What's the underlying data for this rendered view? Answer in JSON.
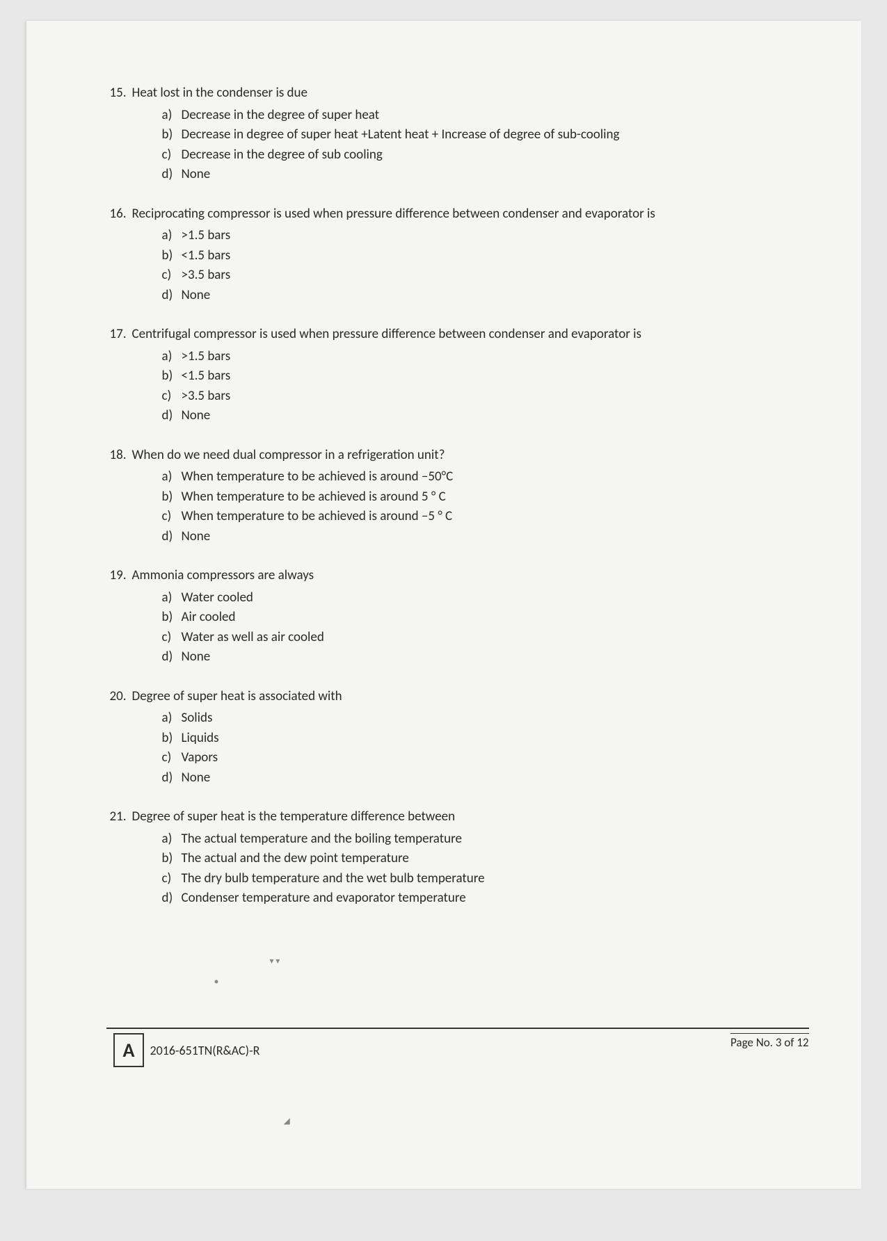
{
  "questions": [
    {
      "num": "15.",
      "text": "Heat lost in the condenser is due",
      "options": [
        {
          "letter": "a)",
          "text": "Decrease in the degree of super heat"
        },
        {
          "letter": "b)",
          "text": "Decrease in degree of super heat +Latent heat + Increase of degree of sub-cooling"
        },
        {
          "letter": "c)",
          "text": "Decrease in the degree of sub cooling"
        },
        {
          "letter": "d)",
          "text": "None"
        }
      ]
    },
    {
      "num": "16.",
      "text": "Reciprocating compressor is used when pressure difference between condenser and evaporator is",
      "options": [
        {
          "letter": "a)",
          "text": ">1.5 bars"
        },
        {
          "letter": "b)",
          "text": "<1.5 bars"
        },
        {
          "letter": "c)",
          "text": ">3.5 bars"
        },
        {
          "letter": "d)",
          "text": "None"
        }
      ]
    },
    {
      "num": "17.",
      "text": "Centrifugal compressor is used when pressure difference between condenser and evaporator is",
      "options": [
        {
          "letter": "a)",
          "text": ">1.5 bars"
        },
        {
          "letter": "b)",
          "text": "<1.5 bars"
        },
        {
          "letter": "c)",
          "text": ">3.5 bars"
        },
        {
          "letter": "d)",
          "text": "None"
        }
      ]
    },
    {
      "num": "18.",
      "text": "When do we need dual compressor in a refrigeration unit?",
      "options": [
        {
          "letter": "a)",
          "text": "When temperature to be achieved is around –50°C"
        },
        {
          "letter": "b)",
          "text": "When temperature to be achieved is around  5 ° C"
        },
        {
          "letter": "c)",
          "text": "When temperature to be achieved is  around –5 ° C"
        },
        {
          "letter": "d)",
          "text": "None"
        }
      ]
    },
    {
      "num": "19.",
      "text": "Ammonia compressors are always",
      "options": [
        {
          "letter": "a)",
          "text": "Water cooled"
        },
        {
          "letter": "b)",
          "text": "Air cooled"
        },
        {
          "letter": "c)",
          "text": "Water as well as air cooled"
        },
        {
          "letter": "d)",
          "text": "None"
        }
      ]
    },
    {
      "num": "20.",
      "text": "Degree of super heat is associated with",
      "options": [
        {
          "letter": "a)",
          "text": "Solids"
        },
        {
          "letter": "b)",
          "text": "Liquids"
        },
        {
          "letter": "c)",
          "text": "Vapors"
        },
        {
          "letter": "d)",
          "text": "None"
        }
      ]
    },
    {
      "num": "21.",
      "text": "Degree of super heat is the temperature difference between",
      "options": [
        {
          "letter": "a)",
          "text": "The actual temperature and the boiling temperature"
        },
        {
          "letter": "b)",
          "text": "The actual and the dew point temperature"
        },
        {
          "letter": "c)",
          "text": "The dry bulb temperature and the wet bulb temperature"
        },
        {
          "letter": "d)",
          "text": "Condenser temperature and evaporator temperature"
        }
      ]
    }
  ],
  "footer": {
    "boxLetter": "A",
    "code": "2016-651TN(R&AC)-R",
    "pageText": "Page No. 3 of 12"
  }
}
